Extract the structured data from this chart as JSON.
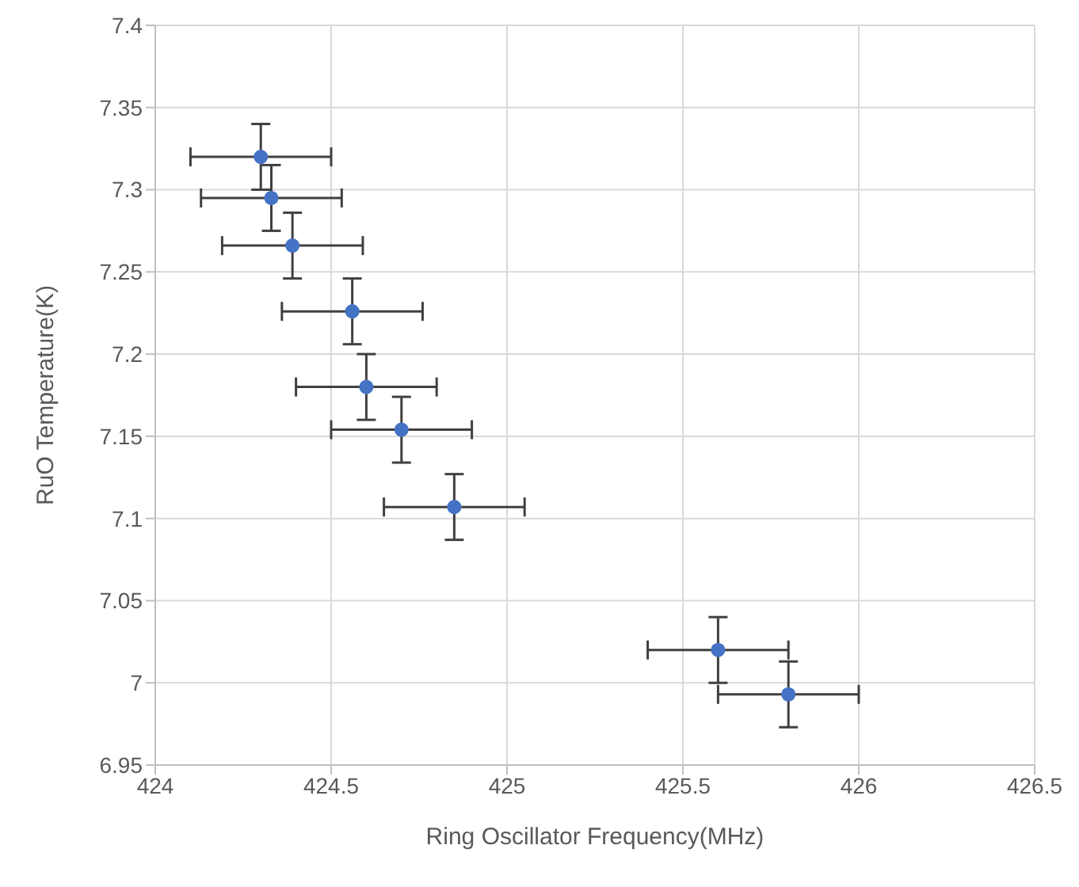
{
  "chart_data": {
    "type": "scatter",
    "xlabel": "Ring Oscillator Frequency(MHz)",
    "ylabel": "RuO Temperature(K)",
    "x": [
      424.3,
      424.33,
      424.39,
      424.56,
      424.6,
      424.7,
      424.85,
      425.6,
      425.8
    ],
    "series": [
      {
        "color": "#4472c4",
        "values": [
          7.32,
          7.295,
          7.266,
          7.226,
          7.18,
          7.154,
          7.107,
          7.02,
          6.993
        ],
        "errors": [
          0.02,
          0.02,
          0.02,
          0.02,
          0.02,
          0.02,
          0.02,
          0.02,
          0.02
        ],
        "xerrors": [
          0.2,
          0.2,
          0.2,
          0.2,
          0.2,
          0.2,
          0.2,
          0.2,
          0.2
        ]
      }
    ],
    "xlim": [
      424,
      426.5
    ],
    "xticks": [
      424,
      424.5,
      425,
      425.5,
      426,
      426.5
    ],
    "ylim": [
      6.95,
      7.4
    ],
    "yticks": [
      6.95,
      7,
      7.05,
      7.1,
      7.15,
      7.2,
      7.25,
      7.3,
      7.35,
      7.4
    ],
    "grid": true,
    "marker": "circle"
  }
}
